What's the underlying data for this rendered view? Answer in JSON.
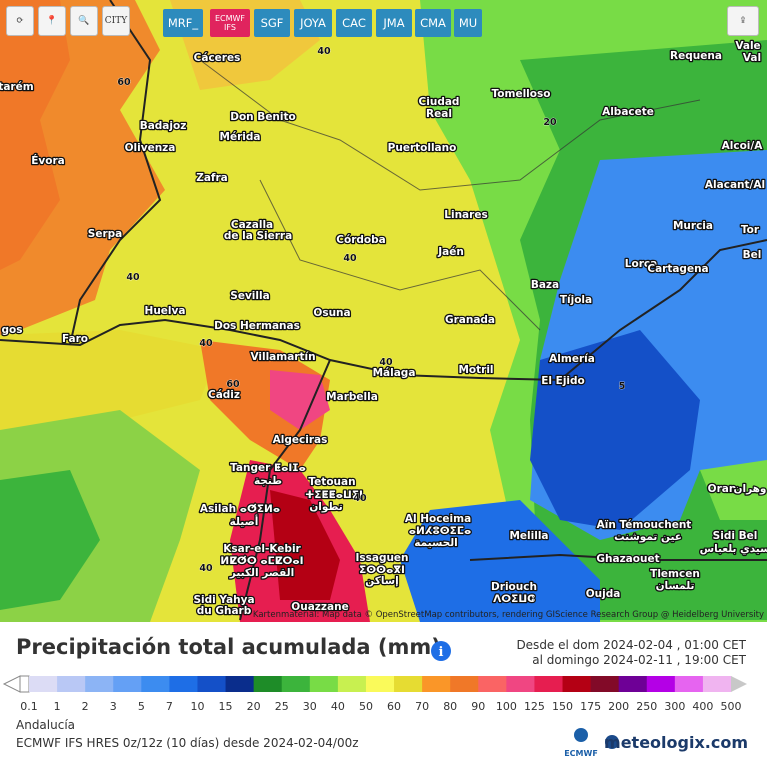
{
  "toolbar": {
    "city": "CITY",
    "models": [
      "MRF_",
      "ECMWF IFS",
      "SGF",
      "JOYA",
      "CAC",
      "JMA",
      "CMA",
      "MU"
    ]
  },
  "map": {
    "cities": [
      "Cáceres",
      "Requena",
      "Vale",
      "Val",
      "tarém",
      "Tomelloso",
      "Ciudad",
      "Real",
      "Albacete",
      "Don Benito",
      "Badajoz",
      "Mérida",
      "Olivenza",
      "Puertollano",
      "Alcoi/A",
      "Évora",
      "Zafra",
      "Alacant/Al",
      "Linares",
      "Cazalla",
      "de la Sierra",
      "Murcia",
      "Tor",
      "Serpa",
      "Córdoba",
      "Jaén",
      "Bel",
      "Lorca",
      "Cartagena",
      "Baza",
      "Sevilla",
      "Tíjola",
      "Huelva",
      "Osuna",
      "Granada",
      "Dos Hermanas",
      "gos",
      "Faro",
      "Villamartín",
      "Almería",
      "Motril",
      "Málaga",
      "El Ejido",
      "Cádiz",
      "Marbella",
      "Algeciras",
      "Tanger ⵟⴰⵏⵊⴰ",
      "طنجة",
      "Tetouan",
      "ⵜⵉⵟⵟⴰⵡⵉⵏ",
      "تطوان",
      "Oran",
      "وهران",
      "Asilah ⴰⵚⵉⵍⴰ",
      "أصيلة",
      "Al Hoceima",
      "ⴰⵍⵃⵓⵙⵉⵎⴰ",
      "الحسيمة",
      "Aïn Témouchent",
      "عين تموشنت",
      "Sidi Bel",
      "سيدي بلعباس",
      "Melilla",
      "Ksar-el-Kebir",
      "ⵍⵇⵚⵔ ⴰⵎⵇⵔⴰⵏ",
      "القصر الكبير",
      "Issaguen",
      "ⵉⵙⵙⴰⴳⵏ",
      "إساكن",
      "Ghazaouet",
      "Tlemcen",
      "تلمسان",
      "Driouch",
      "ⴷⵔⵉⵡⵛ",
      "Sidi Yahya",
      "du Gharb",
      "Oujda",
      "Ouazzane"
    ],
    "contour_labels": [
      "40",
      "60",
      "20",
      "40",
      "40",
      "40",
      "40",
      "60",
      "5",
      "40",
      "40"
    ],
    "attribution": "Kartenmaterial: Map data © OpenStreetMap contributors, rendering GIScience Research Group @ Heidelberg University"
  },
  "legend": {
    "title": "Precipitación total acumulada (mm)",
    "date_from": "Desde el dom 2024-02-04 , 01:00 CET",
    "date_to": "al domingo 2024-02-11 , 19:00 CET",
    "ticks": [
      0.1,
      1,
      2,
      3,
      5,
      7,
      10,
      15,
      20,
      25,
      30,
      40,
      50,
      60,
      70,
      80,
      90,
      100,
      125,
      150,
      175,
      200,
      250,
      300,
      400,
      500
    ],
    "colors": [
      "#dcdcf5",
      "#b9c8f5",
      "#8cb4f5",
      "#64a0f5",
      "#3c8cf0",
      "#1e6ee6",
      "#1450c8",
      "#0a2d8c",
      "#1e8c28",
      "#3cb43c",
      "#78dc46",
      "#c8f050",
      "#fafa5a",
      "#e6dc32",
      "#fa9628",
      "#f07828",
      "#fa6464",
      "#f04682",
      "#e61e50",
      "#b40014",
      "#820a28",
      "#6e0096",
      "#b400e6",
      "#e664f0",
      "#f0b4f0"
    ],
    "over_color": "#c8c8c8",
    "region": "Andalucía",
    "model_run": "ECMWF IFS HRES 0z/12z (10 días) desde 2024-02-04/00z",
    "ecmwf": "ECMWF",
    "brand": "meteologix.com"
  }
}
